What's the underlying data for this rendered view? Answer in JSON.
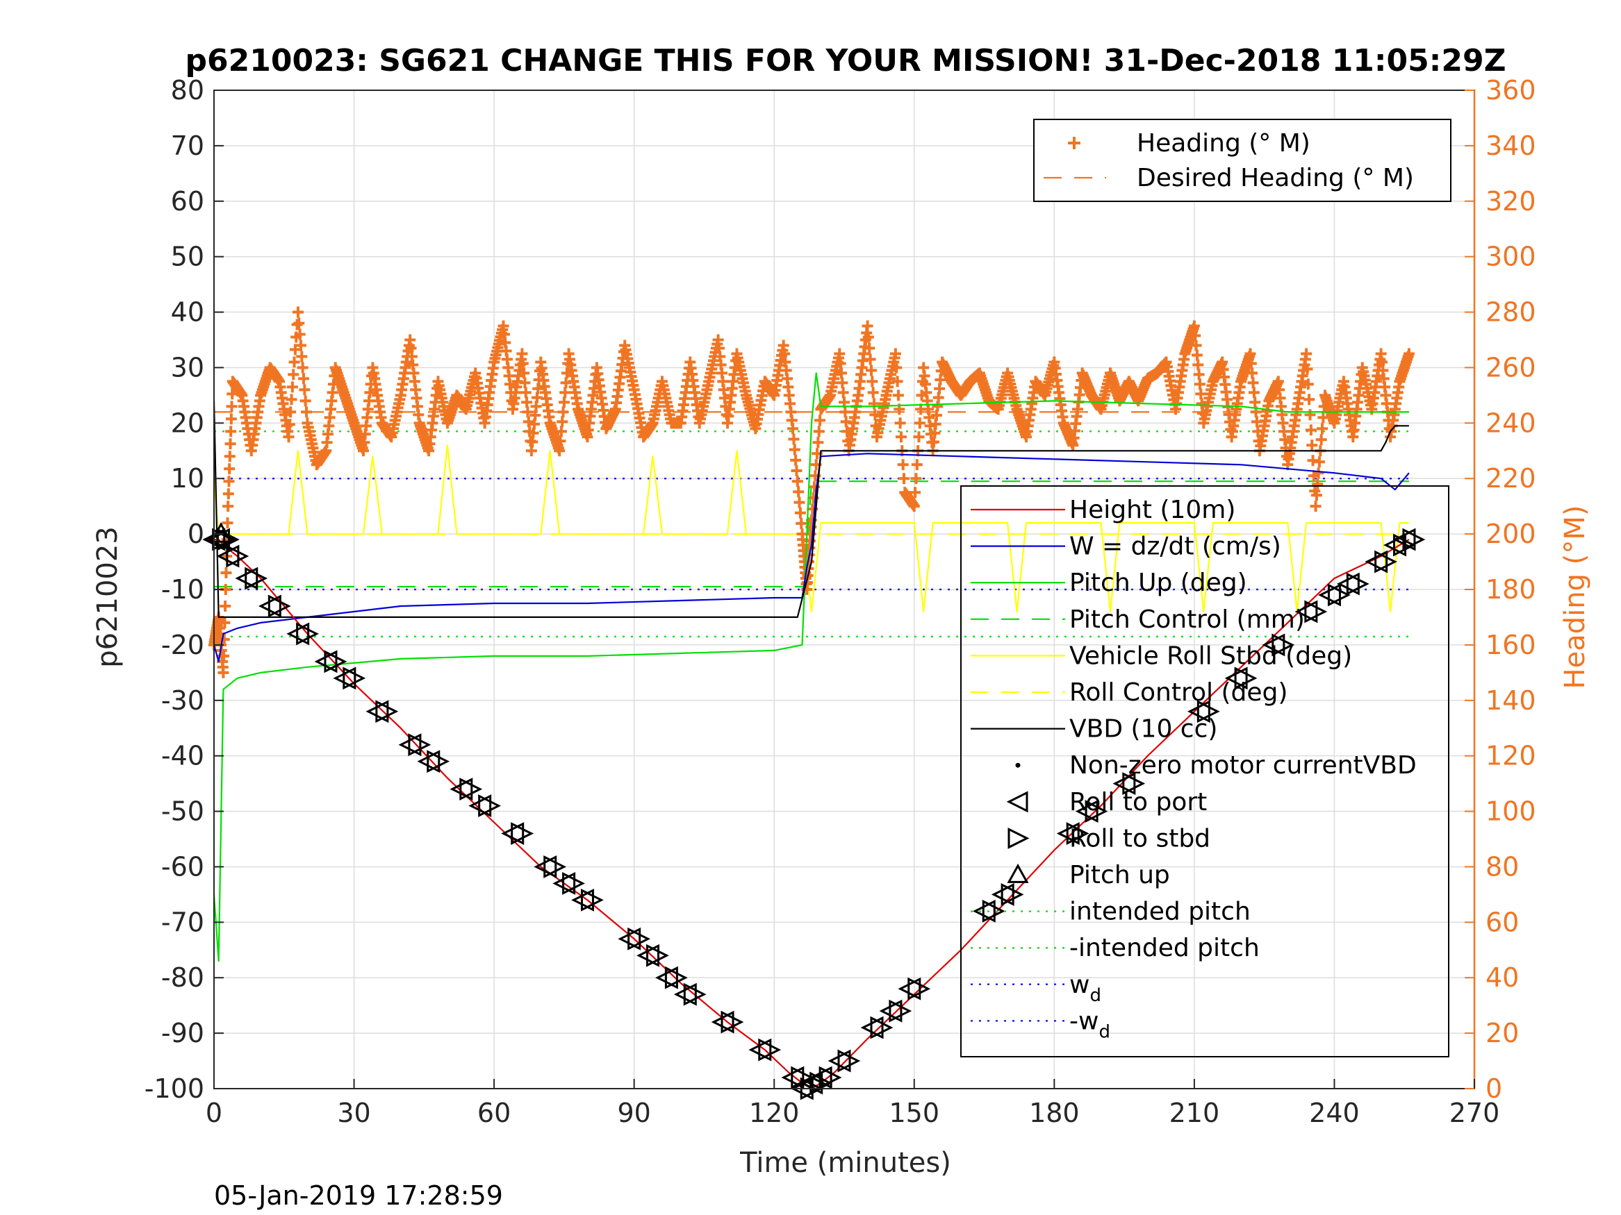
{
  "chart_data": {
    "type": "line",
    "title": "p6210023: SG621 CHANGE THIS FOR YOUR MISSION! 31-Dec-2018 11:05:29Z",
    "xlabel": "Time (minutes)",
    "ylabel": "p6210023",
    "y2label": "Heading (°M)",
    "footer": "05-Jan-2019 17:28:59",
    "xlim": [
      0,
      270
    ],
    "ylim": [
      -100,
      80
    ],
    "y2lim": [
      0,
      360
    ],
    "xticks": [
      0,
      30,
      60,
      90,
      120,
      150,
      180,
      210,
      240,
      270
    ],
    "yticks": [
      -100,
      -90,
      -80,
      -70,
      -60,
      -50,
      -40,
      -30,
      -20,
      -10,
      0,
      10,
      20,
      30,
      40,
      50,
      60,
      70,
      80
    ],
    "y2ticks": [
      0,
      20,
      40,
      60,
      80,
      100,
      120,
      140,
      160,
      180,
      200,
      220,
      240,
      260,
      280,
      300,
      320,
      340,
      360
    ],
    "grid": true,
    "colors": {
      "axis": "#262626",
      "grid": "#dddddd",
      "orange": "#f07523",
      "red": "#e00000",
      "blue": "#0000d8",
      "green": "#00e000",
      "yellow": "#ffff00",
      "black": "#000000",
      "dotgreen": "#22dd22",
      "dotblue": "#2222ee"
    },
    "legend_heading": {
      "placement": "top-right",
      "entries": [
        {
          "label": "Heading (° M)",
          "style": "plus-marker"
        },
        {
          "label": "Desired Heading (° M)",
          "style": "dashed"
        }
      ]
    },
    "legend_main": {
      "placement": "right",
      "entries": [
        {
          "label": "Height (10m)",
          "style": "solid",
          "color": "red"
        },
        {
          "label": "W = dz/dt (cm/s)",
          "style": "solid",
          "color": "blue"
        },
        {
          "label": "Pitch Up (deg)",
          "style": "solid",
          "color": "green"
        },
        {
          "label": "Pitch Control (mm)",
          "style": "dashed",
          "color": "green"
        },
        {
          "label": "Vehicle Roll Stbd (deg)",
          "style": "solid",
          "color": "yellow"
        },
        {
          "label": "Roll Control (deg)",
          "style": "dashed",
          "color": "yellow"
        },
        {
          "label": "VBD (10 cc)",
          "style": "solid",
          "color": "black"
        },
        {
          "label": "Non-zero motor currentVBD",
          "style": "dot",
          "color": "black"
        },
        {
          "label": "Roll to port",
          "style": "tri-left",
          "color": "black"
        },
        {
          "label": "Roll to stbd",
          "style": "tri-right",
          "color": "black"
        },
        {
          "label": "Pitch up",
          "style": "tri-up",
          "color": "black"
        },
        {
          "label": "intended pitch",
          "style": "dotted",
          "color": "dotgreen"
        },
        {
          "label": "-intended pitch",
          "style": "dotted",
          "color": "dotgreen"
        },
        {
          "label": "w",
          "sub": "d",
          "style": "dotted",
          "color": "dotblue"
        },
        {
          "label": "-w",
          "sub": "d",
          "style": "dotted",
          "color": "dotblue"
        }
      ]
    },
    "series": [
      {
        "name": "Height (10m)",
        "axis": "left",
        "color": "red",
        "style": "solid",
        "x": [
          0,
          1,
          2,
          5,
          10,
          20,
          30,
          40,
          50,
          60,
          70,
          80,
          90,
          100,
          110,
          118,
          123,
          126,
          128,
          130,
          133,
          140,
          150,
          160,
          170,
          180,
          190,
          200,
          210,
          220,
          230,
          240,
          250,
          256
        ],
        "y": [
          -1,
          -1,
          -2,
          -4,
          -8,
          -18,
          -27,
          -35,
          -44,
          -52,
          -60,
          -66,
          -73,
          -81,
          -88,
          -93,
          -97,
          -99,
          -100,
          -99,
          -97,
          -91,
          -83,
          -75,
          -66,
          -57,
          -49,
          -40,
          -32,
          -24,
          -16,
          -8,
          -4,
          -1
        ]
      },
      {
        "name": "W = dz/dt (cm/s)",
        "axis": "left",
        "color": "blue",
        "style": "solid",
        "x": [
          0,
          1,
          2,
          5,
          10,
          20,
          40,
          60,
          80,
          100,
          120,
          126,
          127,
          128,
          129,
          130,
          140,
          160,
          180,
          200,
          220,
          240,
          250,
          253,
          256
        ],
        "y": [
          -20,
          -23,
          -18,
          -17,
          -16,
          -15,
          -13,
          -12.5,
          -12.5,
          -12,
          -11.5,
          -11.5,
          -6,
          -2,
          8,
          14,
          14.5,
          14,
          13.5,
          13,
          12.5,
          11,
          10,
          8,
          11
        ]
      },
      {
        "name": "Pitch Up (deg)",
        "axis": "left",
        "color": "green",
        "style": "solid",
        "x": [
          0,
          1,
          2,
          5,
          10,
          20,
          40,
          60,
          80,
          100,
          120,
          126,
          127,
          128,
          129,
          130,
          140,
          160,
          180,
          200,
          220,
          230,
          240,
          256
        ],
        "y": [
          -65,
          -77,
          -28,
          -26,
          -25,
          -24,
          -22.5,
          -22,
          -22,
          -21.5,
          -21,
          -20,
          0,
          20,
          29,
          23,
          23,
          23.5,
          24,
          23.5,
          23,
          22,
          22,
          22
        ]
      },
      {
        "name": "Pitch Control (mm)",
        "axis": "left",
        "color": "green",
        "style": "dashed",
        "x": [
          0,
          125,
          126.5,
          128,
          129,
          256
        ],
        "y": [
          -9.5,
          -9.5,
          -9.5,
          9.5,
          9.5,
          9.5
        ]
      },
      {
        "name": "VBD (10 cc)",
        "axis": "left",
        "color": "black",
        "style": "solid",
        "x": [
          0,
          1,
          2,
          125,
          128,
          130,
          200,
          226,
          226.5,
          250,
          251,
          252,
          253,
          256
        ],
        "y": [
          24,
          -15,
          -15,
          -15,
          -5,
          15,
          15,
          15,
          15,
          15,
          16.5,
          18.5,
          19.5,
          19.5
        ]
      },
      {
        "name": "Vehicle Roll Stbd (deg)",
        "axis": "left",
        "color": "yellow",
        "style": "solid",
        "x": [
          0,
          1,
          3,
          4,
          16,
          18,
          20,
          32,
          34,
          36,
          48,
          50,
          52,
          70,
          72,
          74,
          92,
          94,
          96,
          110,
          112,
          114,
          126,
          128,
          130,
          140,
          150,
          152,
          154,
          170,
          172,
          174,
          190,
          192,
          194,
          210,
          212,
          214,
          230,
          232,
          234,
          250,
          252,
          254,
          256
        ],
        "y": [
          10,
          0,
          0,
          0,
          0,
          15,
          0,
          0,
          14,
          0,
          0,
          16,
          0,
          0,
          15,
          0,
          0,
          14,
          0,
          0,
          15,
          0,
          0,
          -14,
          2,
          2,
          2,
          -14,
          2,
          2,
          -14,
          2,
          2,
          -14,
          2,
          2,
          -14,
          2,
          2,
          -14,
          2,
          2,
          -14,
          2,
          2
        ]
      },
      {
        "name": "Roll Control (deg)",
        "axis": "left",
        "color": "yellow",
        "style": "dashed",
        "x": [
          0,
          256
        ],
        "y": [
          0,
          0
        ]
      },
      {
        "name": "intended pitch",
        "axis": "left",
        "color": "dotgreen",
        "style": "dotted",
        "x": [
          0,
          256
        ],
        "y": [
          18.5,
          18.5
        ]
      },
      {
        "name": "-intended pitch",
        "axis": "left",
        "color": "dotgreen",
        "style": "dotted",
        "x": [
          0,
          256
        ],
        "y": [
          -18.5,
          -18.5
        ]
      },
      {
        "name": "w_d",
        "axis": "left",
        "color": "dotblue",
        "style": "dotted",
        "x": [
          0,
          256
        ],
        "y": [
          10,
          10
        ]
      },
      {
        "name": "-w_d",
        "axis": "left",
        "color": "dotblue",
        "style": "dotted",
        "x": [
          0,
          256
        ],
        "y": [
          -10,
          -10
        ]
      },
      {
        "name": "Desired Heading (° M)",
        "axis": "right",
        "color": "orange",
        "style": "dashed",
        "x": [
          0,
          256
        ],
        "y": [
          244,
          244
        ]
      },
      {
        "name": "Heading (° M)",
        "axis": "right",
        "color": "orange",
        "style": "plus-marker",
        "x": [
          0,
          1,
          2,
          3,
          4,
          6,
          8,
          10,
          12,
          14,
          16,
          18,
          20,
          22,
          24,
          26,
          28,
          30,
          32,
          34,
          36,
          38,
          40,
          42,
          44,
          46,
          48,
          50,
          52,
          54,
          56,
          58,
          60,
          62,
          64,
          66,
          68,
          70,
          72,
          74,
          76,
          78,
          80,
          82,
          84,
          86,
          88,
          90,
          92,
          94,
          96,
          98,
          100,
          102,
          104,
          106,
          108,
          110,
          112,
          114,
          116,
          118,
          120,
          122,
          124,
          126,
          127,
          128,
          130,
          132,
          134,
          136,
          138,
          140,
          142,
          144,
          146,
          148,
          150,
          152,
          154,
          156,
          158,
          160,
          162,
          164,
          166,
          168,
          170,
          172,
          174,
          176,
          178,
          180,
          182,
          184,
          186,
          188,
          190,
          192,
          194,
          196,
          198,
          200,
          202,
          204,
          206,
          208,
          210,
          212,
          214,
          216,
          218,
          220,
          222,
          224,
          226,
          228,
          230,
          232,
          234,
          236,
          238,
          240,
          242,
          244,
          246,
          248,
          250,
          252,
          254,
          256
        ],
        "y": [
          160,
          170,
          150,
          210,
          255,
          250,
          230,
          250,
          260,
          255,
          235,
          280,
          240,
          225,
          230,
          260,
          250,
          240,
          230,
          260,
          240,
          235,
          250,
          270,
          240,
          230,
          255,
          240,
          250,
          245,
          258,
          240,
          262,
          275,
          245,
          265,
          230,
          262,
          240,
          230,
          265,
          245,
          235,
          260,
          238,
          245,
          268,
          252,
          235,
          240,
          255,
          240,
          240,
          262,
          240,
          255,
          270,
          240,
          265,
          250,
          238,
          255,
          250,
          268,
          238,
          200,
          180,
          205,
          245,
          250,
          265,
          230,
          250,
          275,
          235,
          250,
          265,
          215,
          210,
          260,
          230,
          262,
          255,
          250,
          255,
          258,
          248,
          245,
          258,
          245,
          235,
          255,
          250,
          262,
          240,
          232,
          258,
          250,
          245,
          258,
          248,
          255,
          248,
          256,
          258,
          262,
          245,
          265,
          275,
          240,
          255,
          262,
          235,
          255,
          265,
          230,
          248,
          255,
          225,
          245,
          265,
          210,
          250,
          240,
          255,
          235,
          260,
          245,
          265,
          235,
          255,
          265
        ]
      },
      {
        "name": "Roll to port / Roll to stbd",
        "axis": "left",
        "color": "black",
        "style": "triangle-markers",
        "x": [
          1,
          2,
          4,
          8,
          13,
          19,
          25,
          29,
          36,
          43,
          47,
          54,
          58,
          65,
          72,
          76,
          80,
          90,
          94,
          98,
          102,
          110,
          118,
          125,
          127,
          129,
          131,
          135,
          142,
          146,
          150,
          166,
          170,
          184,
          188,
          196,
          212,
          220,
          228,
          235,
          240,
          244,
          250,
          254,
          256
        ],
        "y": [
          -1,
          -1,
          -4,
          -8,
          -13,
          -18,
          -23,
          -26,
          -32,
          -38,
          -41,
          -46,
          -49,
          -54,
          -60,
          -63,
          -66,
          -73,
          -76,
          -80,
          -83,
          -88,
          -93,
          -98,
          -100,
          -99,
          -98,
          -95,
          -89,
          -86,
          -82,
          -68,
          -65,
          -54,
          -50,
          -45,
          -32,
          -26,
          -20,
          -14,
          -11,
          -9,
          -5,
          -2,
          -1
        ]
      }
    ]
  }
}
